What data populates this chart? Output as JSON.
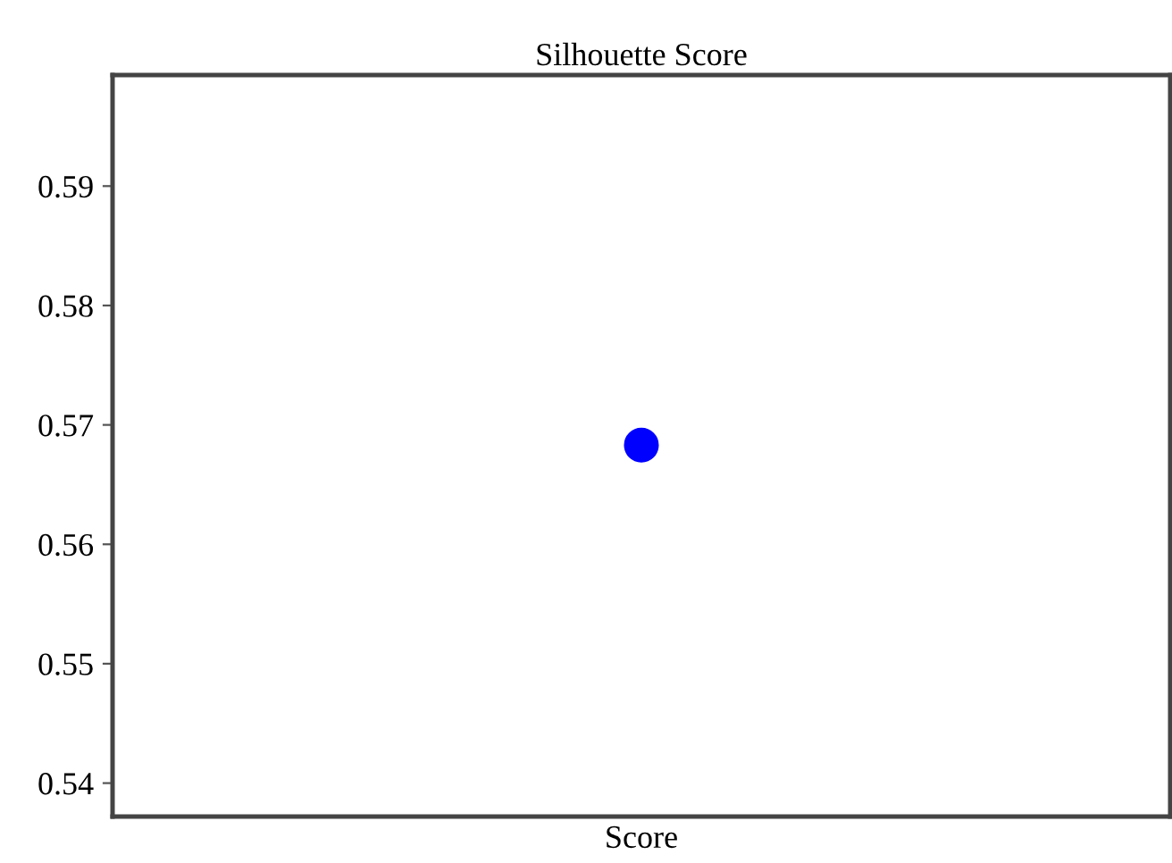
{
  "chart_data": {
    "type": "scatter",
    "title": "Silhouette Score",
    "categories": [
      "Score"
    ],
    "series": [
      {
        "color": "#0000ff",
        "values": [
          0.5683
        ]
      }
    ],
    "ylim": [
      0.5372,
      0.5993
    ],
    "yticks": [
      0.54,
      0.55,
      0.56,
      0.57,
      0.58,
      0.59
    ],
    "grid": false,
    "legend": false,
    "marker": "circle"
  }
}
